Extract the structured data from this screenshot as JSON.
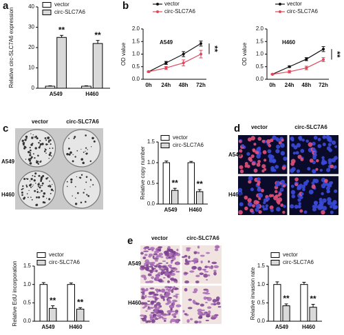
{
  "panel_labels": [
    "a",
    "b",
    "c",
    "d",
    "e"
  ],
  "images": [
    {
      "columns": [
        "vector",
        "circ-SLC7A6"
      ],
      "rows": [
        "A549",
        "H460"
      ]
    },
    {
      "columns": [
        "vector",
        "circ-SLC7A6"
      ],
      "rows": [
        "A549",
        "H460"
      ]
    },
    {
      "columns": [
        "vector",
        "circ-SLC7A6"
      ],
      "rows": [
        "A549",
        "H460"
      ]
    }
  ],
  "chart_data": [
    {
      "type": "bar",
      "ylabel": "Relative circ-SLC7A6 expression",
      "categories": [
        "A549",
        "H460"
      ],
      "legend": "upper left",
      "ylim": [
        0,
        40
      ],
      "yticks": [
        0,
        10,
        20,
        30,
        40
      ],
      "series": [
        {
          "name": "vector",
          "color": "#ffffff",
          "values": [
            1,
            1
          ],
          "errors": [
            0.2,
            0.2
          ]
        },
        {
          "name": "circ-SLC7A6",
          "color": "#d9d9d9",
          "values": [
            25,
            22
          ],
          "errors": [
            1,
            1.5
          ],
          "annotations": [
            "**",
            "**"
          ]
        }
      ]
    },
    {
      "type": "line",
      "title": "A549",
      "ylabel": "OD value",
      "categories": [
        "0h",
        "24h",
        "48h",
        "72h"
      ],
      "legend": "top",
      "ylim": [
        0,
        2
      ],
      "yticks": [
        {
          "value": 0,
          "label": "0.0"
        },
        0.5,
        {
          "value": 1,
          "label": "1.0"
        },
        1.5,
        {
          "value": 2,
          "label": "2.0"
        }
      ],
      "annotations": [
        "**"
      ],
      "series": [
        {
          "name": "vector",
          "color": "#111111",
          "values": [
            0.3,
            0.65,
            1.0,
            1.42
          ],
          "errors": [
            0.02,
            0.06,
            0.1,
            0.1
          ]
        },
        {
          "name": "circ-SLC7A6",
          "color": "#e0475b",
          "values": [
            0.3,
            0.45,
            0.65,
            1.0
          ],
          "errors": [
            0.02,
            0.06,
            0.12,
            0.15
          ]
        }
      ]
    },
    {
      "type": "line",
      "title": "H460",
      "ylabel": "OD value",
      "categories": [
        "0h",
        "24h",
        "48h",
        "72h"
      ],
      "legend": "top",
      "ylim": [
        0,
        2
      ],
      "yticks": [
        {
          "value": 0,
          "label": "0.0"
        },
        0.5,
        {
          "value": 1,
          "label": "1.0"
        },
        1.5,
        {
          "value": 2,
          "label": "2.0"
        }
      ],
      "annotations": [
        "**"
      ],
      "series": [
        {
          "name": "vector",
          "color": "#111111",
          "values": [
            0.2,
            0.5,
            0.8,
            1.2
          ],
          "errors": [
            0.02,
            0.03,
            0.06,
            0.1
          ]
        },
        {
          "name": "circ-SLC7A6",
          "color": "#e0475b",
          "values": [
            0.2,
            0.3,
            0.45,
            0.78
          ],
          "errors": [
            0.02,
            0.05,
            0.07,
            0.08
          ]
        }
      ]
    },
    {
      "type": "bar",
      "ylabel": "Relative copy number",
      "categories": [
        "A549",
        "H460"
      ],
      "legend": "upper left",
      "ylim": [
        0,
        1.5
      ],
      "yticks": [
        {
          "value": 0,
          "label": "0.0"
        },
        0.5,
        {
          "value": 1,
          "label": "1.0"
        },
        1.5
      ],
      "series": [
        {
          "name": "vector",
          "color": "#ffffff",
          "values": [
            1,
            1
          ],
          "errors": [
            0.04,
            0.03
          ]
        },
        {
          "name": "circ-SLC7A6",
          "color": "#d9d9d9",
          "values": [
            0.33,
            0.3
          ],
          "errors": [
            0.05,
            0.05
          ],
          "annotations": [
            "**",
            "**"
          ]
        }
      ]
    },
    {
      "type": "bar",
      "ylabel": "Relative EdU incorporation",
      "categories": [
        "A549",
        "H460"
      ],
      "legend": "upper left",
      "ylim": [
        0,
        1.5
      ],
      "yticks": [
        {
          "value": 0,
          "label": "0.0"
        },
        0.5,
        {
          "value": 1,
          "label": "1.0"
        },
        1.5
      ],
      "series": [
        {
          "name": "vector",
          "color": "#ffffff",
          "values": [
            1,
            1
          ],
          "errors": [
            0.05,
            0.04
          ]
        },
        {
          "name": "circ-SLC7A6",
          "color": "#d9d9d9",
          "values": [
            0.35,
            0.33
          ],
          "errors": [
            0.07,
            0.04
          ],
          "annotations": [
            "**",
            "**"
          ]
        }
      ]
    },
    {
      "type": "bar",
      "ylabel": "Relative invasion rate",
      "categories": [
        "A549",
        "H460"
      ],
      "legend": "upper left",
      "ylim": [
        0,
        1.5
      ],
      "yticks": [
        {
          "value": 0,
          "label": "0.0"
        },
        0.5,
        {
          "value": 1,
          "label": "1.0"
        },
        1.5
      ],
      "series": [
        {
          "name": "vector",
          "color": "#ffffff",
          "values": [
            1,
            1
          ],
          "errors": [
            0.07,
            0.06
          ]
        },
        {
          "name": "circ-SLC7A6",
          "color": "#d9d9d9",
          "values": [
            0.42,
            0.38
          ],
          "errors": [
            0.05,
            0.08
          ],
          "annotations": [
            "**",
            "**"
          ]
        }
      ]
    }
  ]
}
